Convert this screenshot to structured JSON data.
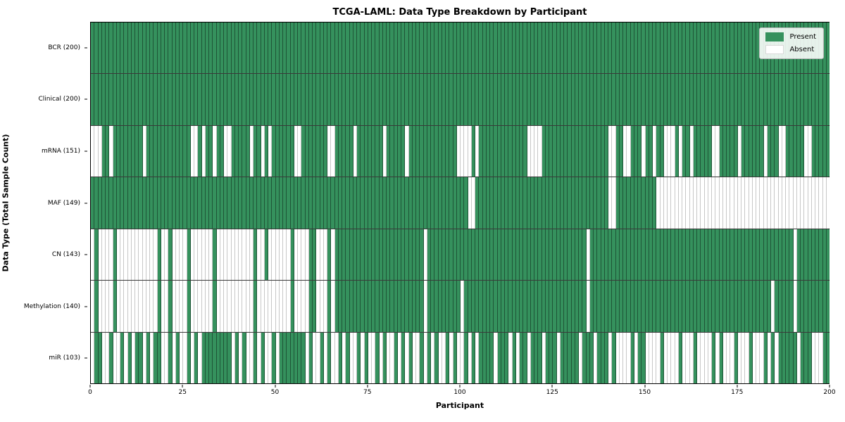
{
  "title": "TCGA-LAML: Data Type Breakdown by Participant",
  "colors": {
    "present": "#35915d",
    "absent": "#ffffff",
    "row_separator": "#3a3a3a",
    "axis": "#000000"
  },
  "chart_data": {
    "type": "heatmap",
    "title": "TCGA-LAML: Data Type Breakdown by Participant",
    "xlabel": "Participant",
    "ylabel": "Data Type (Total Sample Count)",
    "x_range": [
      0,
      200
    ],
    "x_ticks": [
      0,
      25,
      50,
      75,
      100,
      125,
      150,
      175,
      200
    ],
    "n_participants": 200,
    "grid": false,
    "legend_position": "upper right",
    "legend": [
      {
        "label": "Present",
        "color": "#35915d"
      },
      {
        "label": "Absent",
        "color": "#ffffff"
      }
    ],
    "rows": [
      {
        "label": "BCR (200)",
        "name": "BCR",
        "present_count": 200,
        "absent_indices": []
      },
      {
        "label": "Clinical (200)",
        "name": "Clinical",
        "present_count": 200,
        "absent_indices": []
      },
      {
        "label": "mRNA (151)",
        "name": "mRNA",
        "present_count": 151,
        "absent_indices": [
          0,
          1,
          2,
          5,
          14,
          27,
          28,
          30,
          33,
          36,
          37,
          43,
          46,
          48,
          55,
          56,
          64,
          65,
          71,
          79,
          85,
          99,
          100,
          101,
          102,
          104,
          118,
          119,
          120,
          121,
          140,
          141,
          144,
          145,
          149,
          152,
          155,
          156,
          157,
          159,
          162,
          168,
          169,
          175,
          182,
          186,
          187,
          193,
          194
        ]
      },
      {
        "label": "MAF (149)",
        "name": "MAF",
        "present_count": 149,
        "absent_indices": [
          102,
          103,
          140,
          141,
          153,
          154,
          155,
          156,
          157,
          158,
          159,
          160,
          161,
          162,
          163,
          164,
          165,
          166,
          167,
          168,
          169,
          170,
          171,
          172,
          173,
          174,
          175,
          176,
          177,
          178,
          179,
          180,
          181,
          182,
          183,
          184,
          185,
          186,
          187,
          188,
          189,
          190,
          191,
          192,
          193,
          194,
          195,
          196,
          197,
          198,
          199
        ]
      },
      {
        "label": "CN (143)",
        "name": "CN",
        "present_count": 143,
        "absent_indices": [
          0,
          2,
          3,
          4,
          5,
          7,
          8,
          9,
          10,
          11,
          12,
          13,
          14,
          15,
          16,
          17,
          19,
          20,
          22,
          23,
          24,
          25,
          27,
          28,
          29,
          30,
          31,
          32,
          34,
          35,
          36,
          37,
          38,
          39,
          40,
          41,
          42,
          43,
          45,
          46,
          48,
          49,
          50,
          51,
          52,
          53,
          55,
          56,
          57,
          58,
          61,
          62,
          63,
          65,
          90,
          134,
          190
        ]
      },
      {
        "label": "Methylation (140)",
        "name": "Methylation",
        "present_count": 140,
        "absent_indices": [
          0,
          2,
          3,
          4,
          5,
          7,
          8,
          9,
          10,
          11,
          12,
          13,
          14,
          15,
          16,
          17,
          19,
          20,
          22,
          23,
          24,
          25,
          27,
          28,
          29,
          30,
          31,
          32,
          34,
          35,
          36,
          37,
          38,
          39,
          40,
          41,
          42,
          43,
          45,
          46,
          47,
          48,
          49,
          50,
          51,
          52,
          53,
          55,
          56,
          57,
          58,
          61,
          62,
          63,
          65,
          90,
          100,
          134,
          184,
          190
        ]
      },
      {
        "label": "miR (103)",
        "name": "miR",
        "present_count": 103,
        "absent_indices": [
          0,
          3,
          4,
          6,
          7,
          9,
          11,
          14,
          16,
          19,
          20,
          22,
          24,
          25,
          27,
          29,
          38,
          40,
          42,
          43,
          45,
          47,
          48,
          50,
          58,
          60,
          61,
          63,
          65,
          66,
          68,
          70,
          71,
          73,
          75,
          76,
          78,
          80,
          81,
          83,
          85,
          87,
          88,
          90,
          92,
          94,
          95,
          97,
          99,
          100,
          102,
          104,
          109,
          113,
          115,
          118,
          122,
          126,
          132,
          136,
          140,
          142,
          143,
          144,
          145,
          147,
          150,
          151,
          152,
          153,
          155,
          156,
          157,
          158,
          160,
          161,
          162,
          164,
          165,
          166,
          167,
          169,
          171,
          172,
          173,
          175,
          176,
          177,
          179,
          180,
          181,
          183,
          185,
          191,
          195,
          196,
          197
        ]
      }
    ]
  }
}
